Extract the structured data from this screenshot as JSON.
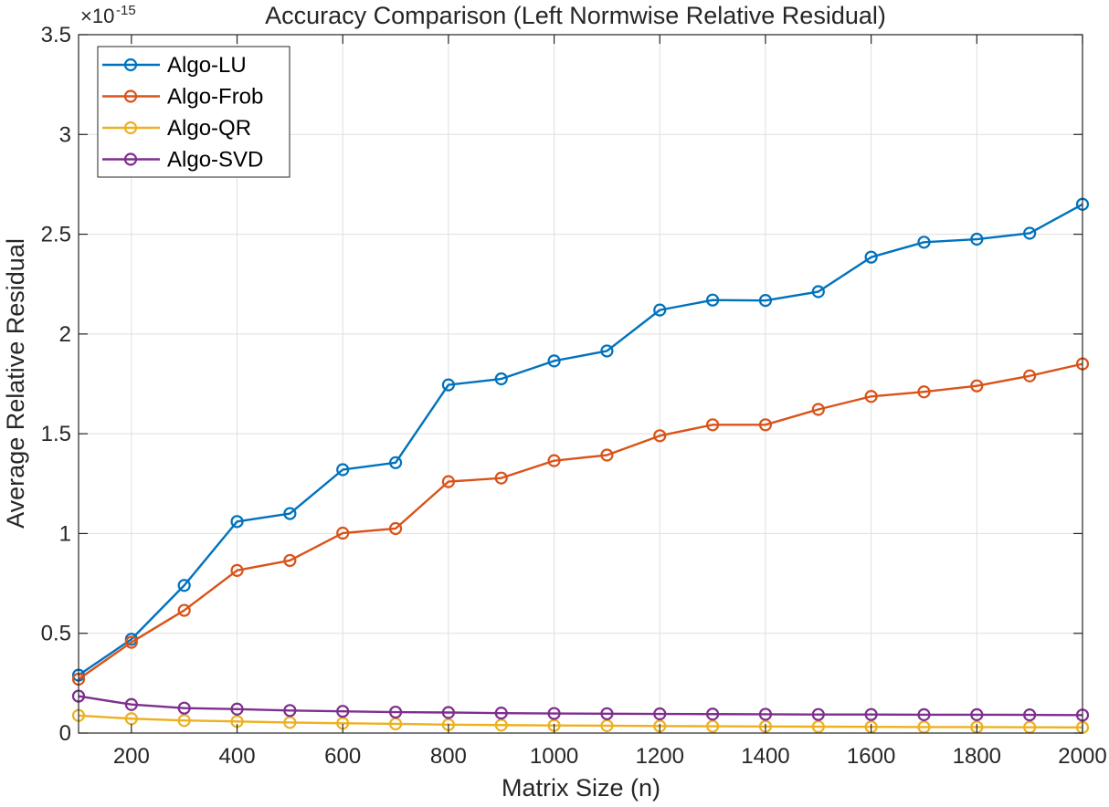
{
  "chart_data": {
    "type": "line",
    "title": "Accuracy Comparison (Left Normwise Relative Residual)",
    "xlabel": "Matrix Size (n)",
    "ylabel": "Average Relative Residual",
    "y_exponent_prefix": "×10",
    "y_exponent_power": "-15",
    "xlim": [
      100,
      2000
    ],
    "ylim": [
      0,
      3.5
    ],
    "x_ticks": [
      200,
      400,
      600,
      800,
      1000,
      1200,
      1400,
      1600,
      1800,
      2000
    ],
    "x_tick_labels": [
      "200",
      "400",
      "600",
      "800",
      "1000",
      "1200",
      "1400",
      "1600",
      "1800",
      "2000"
    ],
    "y_ticks": [
      0,
      0.5,
      1,
      1.5,
      2,
      2.5,
      3,
      3.5
    ],
    "y_tick_labels": [
      "0",
      "0.5",
      "1",
      "1.5",
      "2",
      "2.5",
      "3",
      "3.5"
    ],
    "grid": true,
    "legend_position": "top-left",
    "x": [
      100,
      200,
      300,
      400,
      500,
      600,
      700,
      800,
      900,
      1000,
      1100,
      1200,
      1300,
      1400,
      1500,
      1600,
      1700,
      1800,
      1900,
      2000
    ],
    "series": [
      {
        "name": "Algo-LU",
        "color": "#0072BD",
        "values": [
          0.29,
          0.47,
          0.74,
          1.06,
          1.1,
          1.32,
          1.355,
          1.745,
          1.775,
          1.865,
          1.915,
          2.12,
          2.17,
          2.168,
          2.212,
          2.385,
          2.46,
          2.475,
          2.505,
          2.65
        ]
      },
      {
        "name": "Algo-Frob",
        "color": "#D95319",
        "values": [
          0.27,
          0.455,
          0.615,
          0.815,
          0.865,
          1.002,
          1.025,
          1.26,
          1.278,
          1.365,
          1.393,
          1.49,
          1.545,
          1.545,
          1.622,
          1.687,
          1.71,
          1.74,
          1.79,
          1.85
        ]
      },
      {
        "name": "Algo-QR",
        "color": "#EDB120",
        "values": [
          0.088,
          0.072,
          0.063,
          0.058,
          0.053,
          0.049,
          0.046,
          0.042,
          0.04,
          0.038,
          0.037,
          0.035,
          0.034,
          0.033,
          0.032,
          0.031,
          0.03,
          0.03,
          0.029,
          0.028
        ]
      },
      {
        "name": "Algo-SVD",
        "color": "#7E2F8E",
        "values": [
          0.185,
          0.143,
          0.125,
          0.12,
          0.113,
          0.109,
          0.105,
          0.103,
          0.1,
          0.098,
          0.097,
          0.096,
          0.095,
          0.094,
          0.093,
          0.093,
          0.092,
          0.092,
          0.091,
          0.09
        ]
      }
    ]
  }
}
